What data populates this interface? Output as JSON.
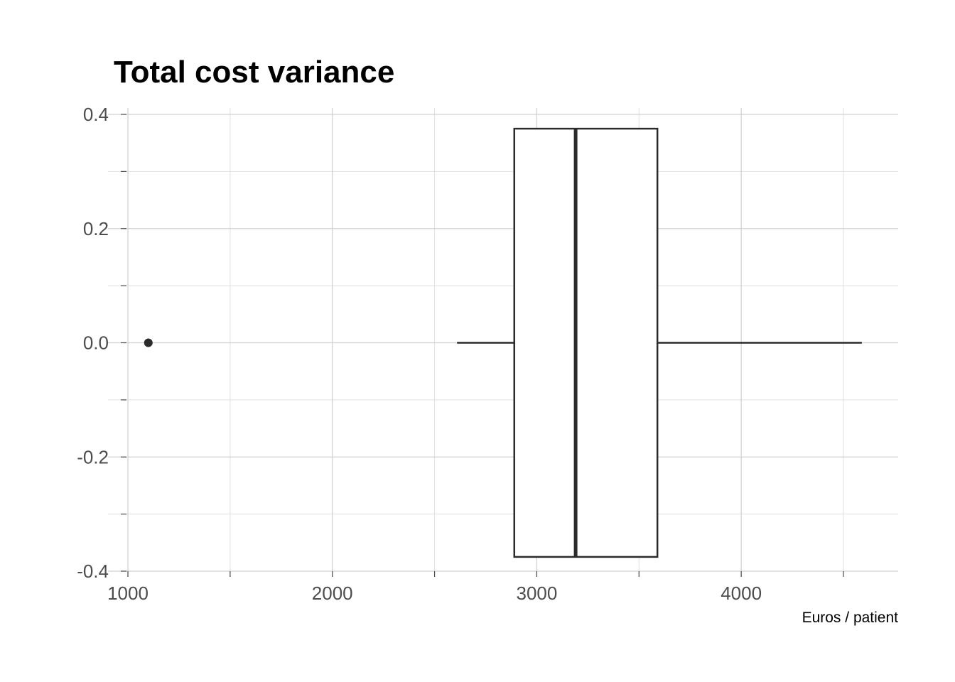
{
  "chart_data": {
    "type": "boxplot",
    "title": "Total cost variance",
    "xlabel": "Euros / patient",
    "ylabel": "",
    "xlim": [
      930,
      4770
    ],
    "ylim": [
      -0.4,
      0.4
    ],
    "x_major_ticks": [
      1000,
      2000,
      3000,
      4000
    ],
    "x_minor_ticks": [
      1500,
      2500,
      3500,
      4500
    ],
    "y_major_ticks": [
      -0.4,
      -0.2,
      0.0,
      0.2,
      0.4
    ],
    "y_minor_ticks": [
      -0.3,
      -0.1,
      0.1,
      0.3
    ],
    "x_tick_labels": [
      "1000",
      "2000",
      "3000",
      "4000"
    ],
    "y_tick_labels": [
      "-0.4",
      "-0.2",
      "0.0",
      "0.2",
      "0.4"
    ],
    "grid": true,
    "orientation": "horizontal",
    "box": {
      "whisker_low": 2610,
      "q1": 2890,
      "median": 3190,
      "q3": 3590,
      "whisker_high": 4590,
      "y_center": 0.0,
      "half_width": 0.375,
      "outliers": [
        1100
      ]
    },
    "colors": {
      "box_stroke": "#2b2b2b",
      "box_fill": "#ffffff",
      "grid": "#d0d0d0",
      "tick_text": "#4d4d4d",
      "title": "#000000"
    }
  }
}
